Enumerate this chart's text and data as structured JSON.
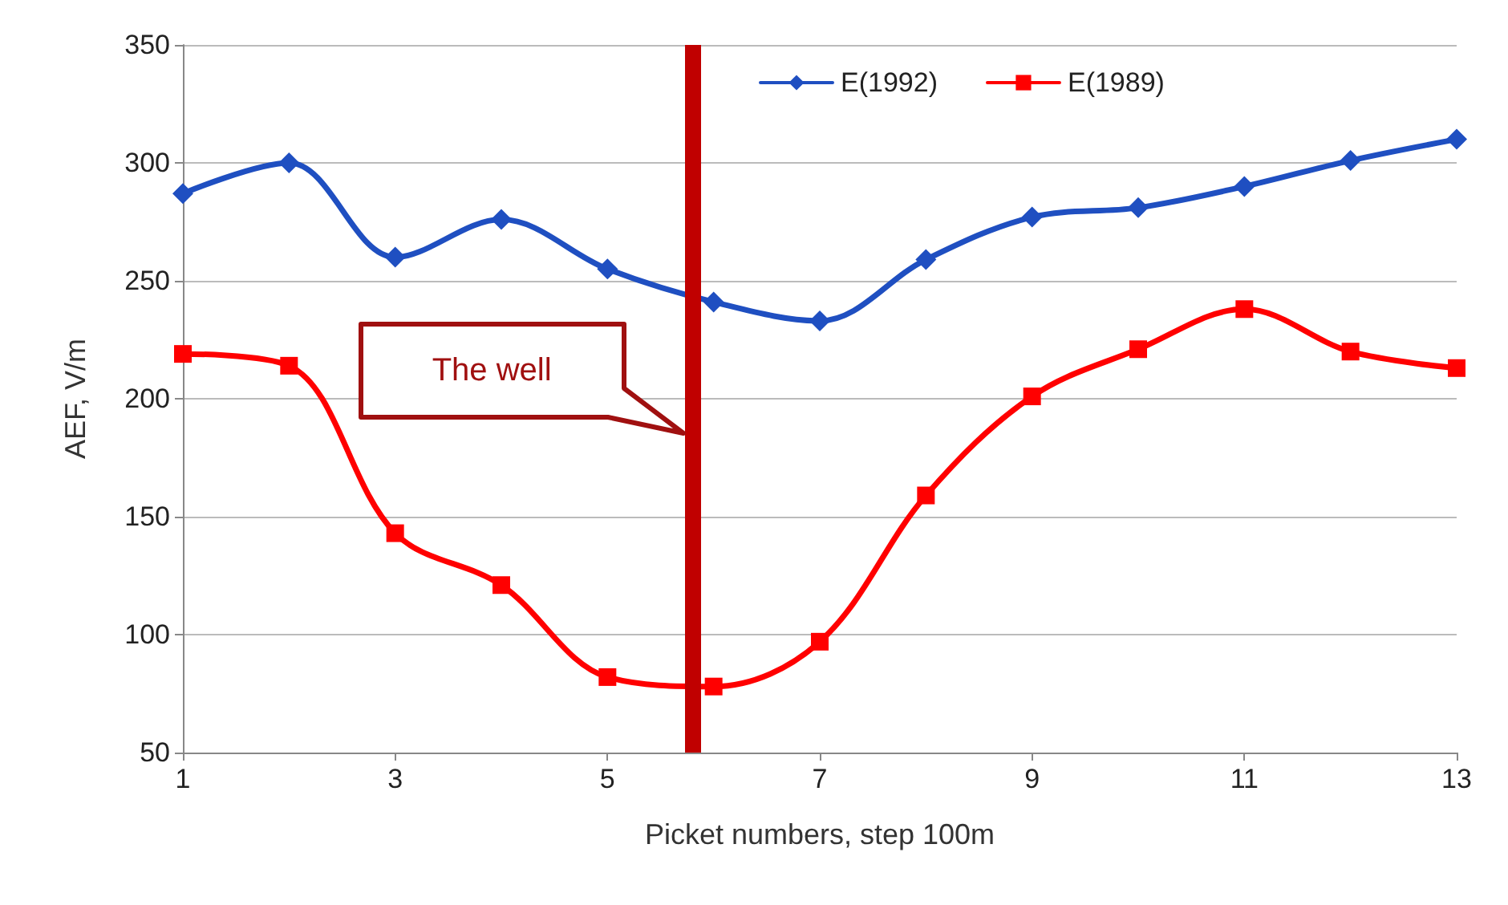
{
  "chart_data": {
    "type": "line",
    "xlabel": "Picket numbers, step 100m",
    "ylabel": "AEF, V/m",
    "x": [
      1,
      2,
      3,
      4,
      5,
      6,
      7,
      8,
      9,
      10,
      11,
      12,
      13
    ],
    "series": [
      {
        "name": "E(1992)",
        "color": "#1f4fc1",
        "marker": "diamond",
        "values": [
          287,
          300,
          260,
          276,
          255,
          241,
          233,
          259,
          277,
          281,
          290,
          301,
          310
        ]
      },
      {
        "name": "E(1989)",
        "color": "#ff0000",
        "marker": "square",
        "values": [
          219,
          214,
          143,
          121,
          82,
          78,
          97,
          159,
          201,
          221,
          238,
          220,
          213
        ]
      }
    ],
    "xlim": [
      1,
      13
    ],
    "xticks": [
      1,
      3,
      5,
      7,
      9,
      11,
      13
    ],
    "ylim": [
      50,
      350
    ],
    "yticks": [
      50,
      100,
      150,
      200,
      250,
      300,
      350
    ],
    "grid": "y",
    "legend": "top",
    "line_style": "solid",
    "ref_lines": [
      {
        "axis": "x",
        "value": 5.8,
        "color": "#c00000"
      }
    ],
    "annotations": [
      "The well"
    ]
  }
}
